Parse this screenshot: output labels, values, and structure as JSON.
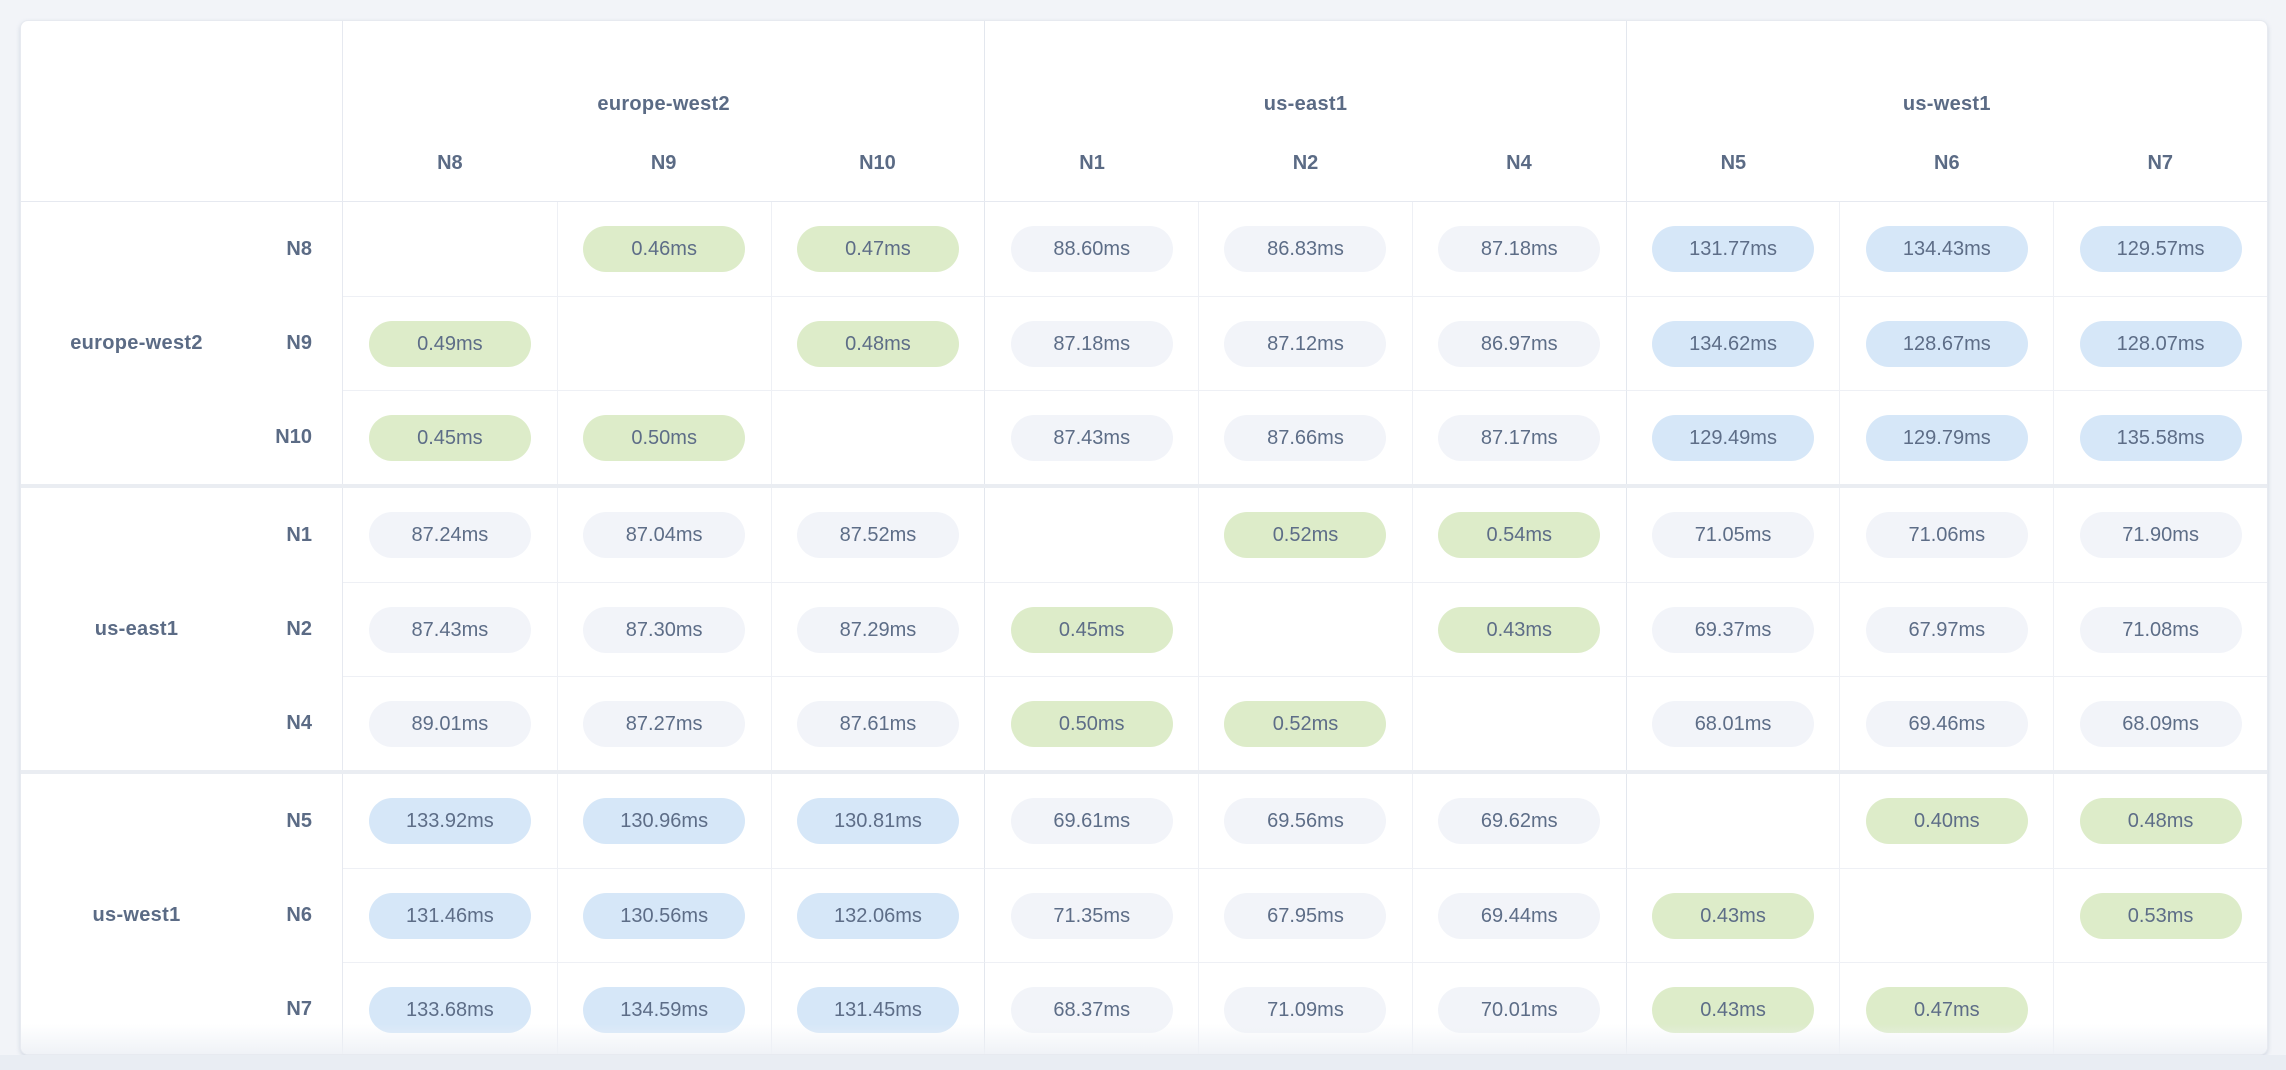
{
  "regions": [
    {
      "name": "europe-west2",
      "nodes": [
        "N8",
        "N9",
        "N10"
      ]
    },
    {
      "name": "us-east1",
      "nodes": [
        "N1",
        "N2",
        "N4"
      ]
    },
    {
      "name": "us-west1",
      "nodes": [
        "N5",
        "N6",
        "N7"
      ]
    }
  ],
  "matrix": {
    "columns": [
      "N8",
      "N9",
      "N10",
      "N1",
      "N2",
      "N4",
      "N5",
      "N6",
      "N7"
    ],
    "rows": [
      {
        "node": "N8",
        "region": "europe-west2",
        "values": [
          null,
          "0.46ms",
          "0.47ms",
          "88.60ms",
          "86.83ms",
          "87.18ms",
          "131.77ms",
          "134.43ms",
          "129.57ms"
        ]
      },
      {
        "node": "N9",
        "region": "europe-west2",
        "values": [
          "0.49ms",
          null,
          "0.48ms",
          "87.18ms",
          "87.12ms",
          "86.97ms",
          "134.62ms",
          "128.67ms",
          "128.07ms"
        ]
      },
      {
        "node": "N10",
        "region": "europe-west2",
        "values": [
          "0.45ms",
          "0.50ms",
          null,
          "87.43ms",
          "87.66ms",
          "87.17ms",
          "129.49ms",
          "129.79ms",
          "135.58ms"
        ]
      },
      {
        "node": "N1",
        "region": "us-east1",
        "values": [
          "87.24ms",
          "87.04ms",
          "87.52ms",
          null,
          "0.52ms",
          "0.54ms",
          "71.05ms",
          "71.06ms",
          "71.90ms"
        ]
      },
      {
        "node": "N2",
        "region": "us-east1",
        "values": [
          "87.43ms",
          "87.30ms",
          "87.29ms",
          "0.45ms",
          null,
          "0.43ms",
          "69.37ms",
          "67.97ms",
          "71.08ms"
        ]
      },
      {
        "node": "N4",
        "region": "us-east1",
        "values": [
          "89.01ms",
          "87.27ms",
          "87.61ms",
          "0.50ms",
          "0.52ms",
          null,
          "68.01ms",
          "69.46ms",
          "68.09ms"
        ]
      },
      {
        "node": "N5",
        "region": "us-west1",
        "values": [
          "133.92ms",
          "130.96ms",
          "130.81ms",
          "69.61ms",
          "69.56ms",
          "69.62ms",
          null,
          "0.40ms",
          "0.48ms"
        ]
      },
      {
        "node": "N6",
        "region": "us-west1",
        "values": [
          "131.46ms",
          "130.56ms",
          "132.06ms",
          "71.35ms",
          "67.95ms",
          "69.44ms",
          "0.43ms",
          null,
          "0.53ms"
        ]
      },
      {
        "node": "N7",
        "region": "us-west1",
        "values": [
          "133.68ms",
          "134.59ms",
          "131.45ms",
          "68.37ms",
          "71.09ms",
          "70.01ms",
          "0.43ms",
          "0.47ms",
          null
        ]
      }
    ]
  },
  "legend_colors": {
    "intra_region_fast": "#ddecc9",
    "inter_region_near": "#f2f4f9",
    "inter_region_far": "#d6e7f8",
    "text": "#5b6b85",
    "card_background": "#ffffff",
    "page_background": "#f2f4f8"
  },
  "chart_data": {
    "type": "heatmap",
    "title": "",
    "unit": "ms",
    "columns": [
      "N8",
      "N9",
      "N10",
      "N1",
      "N2",
      "N4",
      "N5",
      "N6",
      "N7"
    ],
    "rows": [
      "N8",
      "N9",
      "N10",
      "N1",
      "N2",
      "N4",
      "N5",
      "N6",
      "N7"
    ],
    "column_groups": [
      {
        "label": "europe-west2",
        "span": [
          "N8",
          "N9",
          "N10"
        ]
      },
      {
        "label": "us-east1",
        "span": [
          "N1",
          "N2",
          "N4"
        ]
      },
      {
        "label": "us-west1",
        "span": [
          "N5",
          "N6",
          "N7"
        ]
      }
    ],
    "values_ms": [
      [
        null,
        0.46,
        0.47,
        88.6,
        86.83,
        87.18,
        131.77,
        134.43,
        129.57
      ],
      [
        0.49,
        null,
        0.48,
        87.18,
        87.12,
        86.97,
        134.62,
        128.67,
        128.07
      ],
      [
        0.45,
        0.5,
        null,
        87.43,
        87.66,
        87.17,
        129.49,
        129.79,
        135.58
      ],
      [
        87.24,
        87.04,
        87.52,
        null,
        0.52,
        0.54,
        71.05,
        71.06,
        71.9
      ],
      [
        87.43,
        87.3,
        87.29,
        0.45,
        null,
        0.43,
        69.37,
        67.97,
        71.08
      ],
      [
        89.01,
        87.27,
        87.61,
        0.5,
        0.52,
        null,
        68.01,
        69.46,
        68.09
      ],
      [
        133.92,
        130.96,
        130.81,
        69.61,
        69.56,
        69.62,
        null,
        0.4,
        0.48
      ],
      [
        131.46,
        130.56,
        132.06,
        71.35,
        67.95,
        69.44,
        0.43,
        null,
        0.53
      ],
      [
        133.68,
        134.59,
        131.45,
        68.37,
        71.09,
        70.01,
        0.43,
        0.47,
        null
      ]
    ],
    "color_rule": {
      "fast_green": "< 1ms",
      "medium_gray": "1-100ms",
      "slow_blue": ">= 100ms"
    }
  }
}
